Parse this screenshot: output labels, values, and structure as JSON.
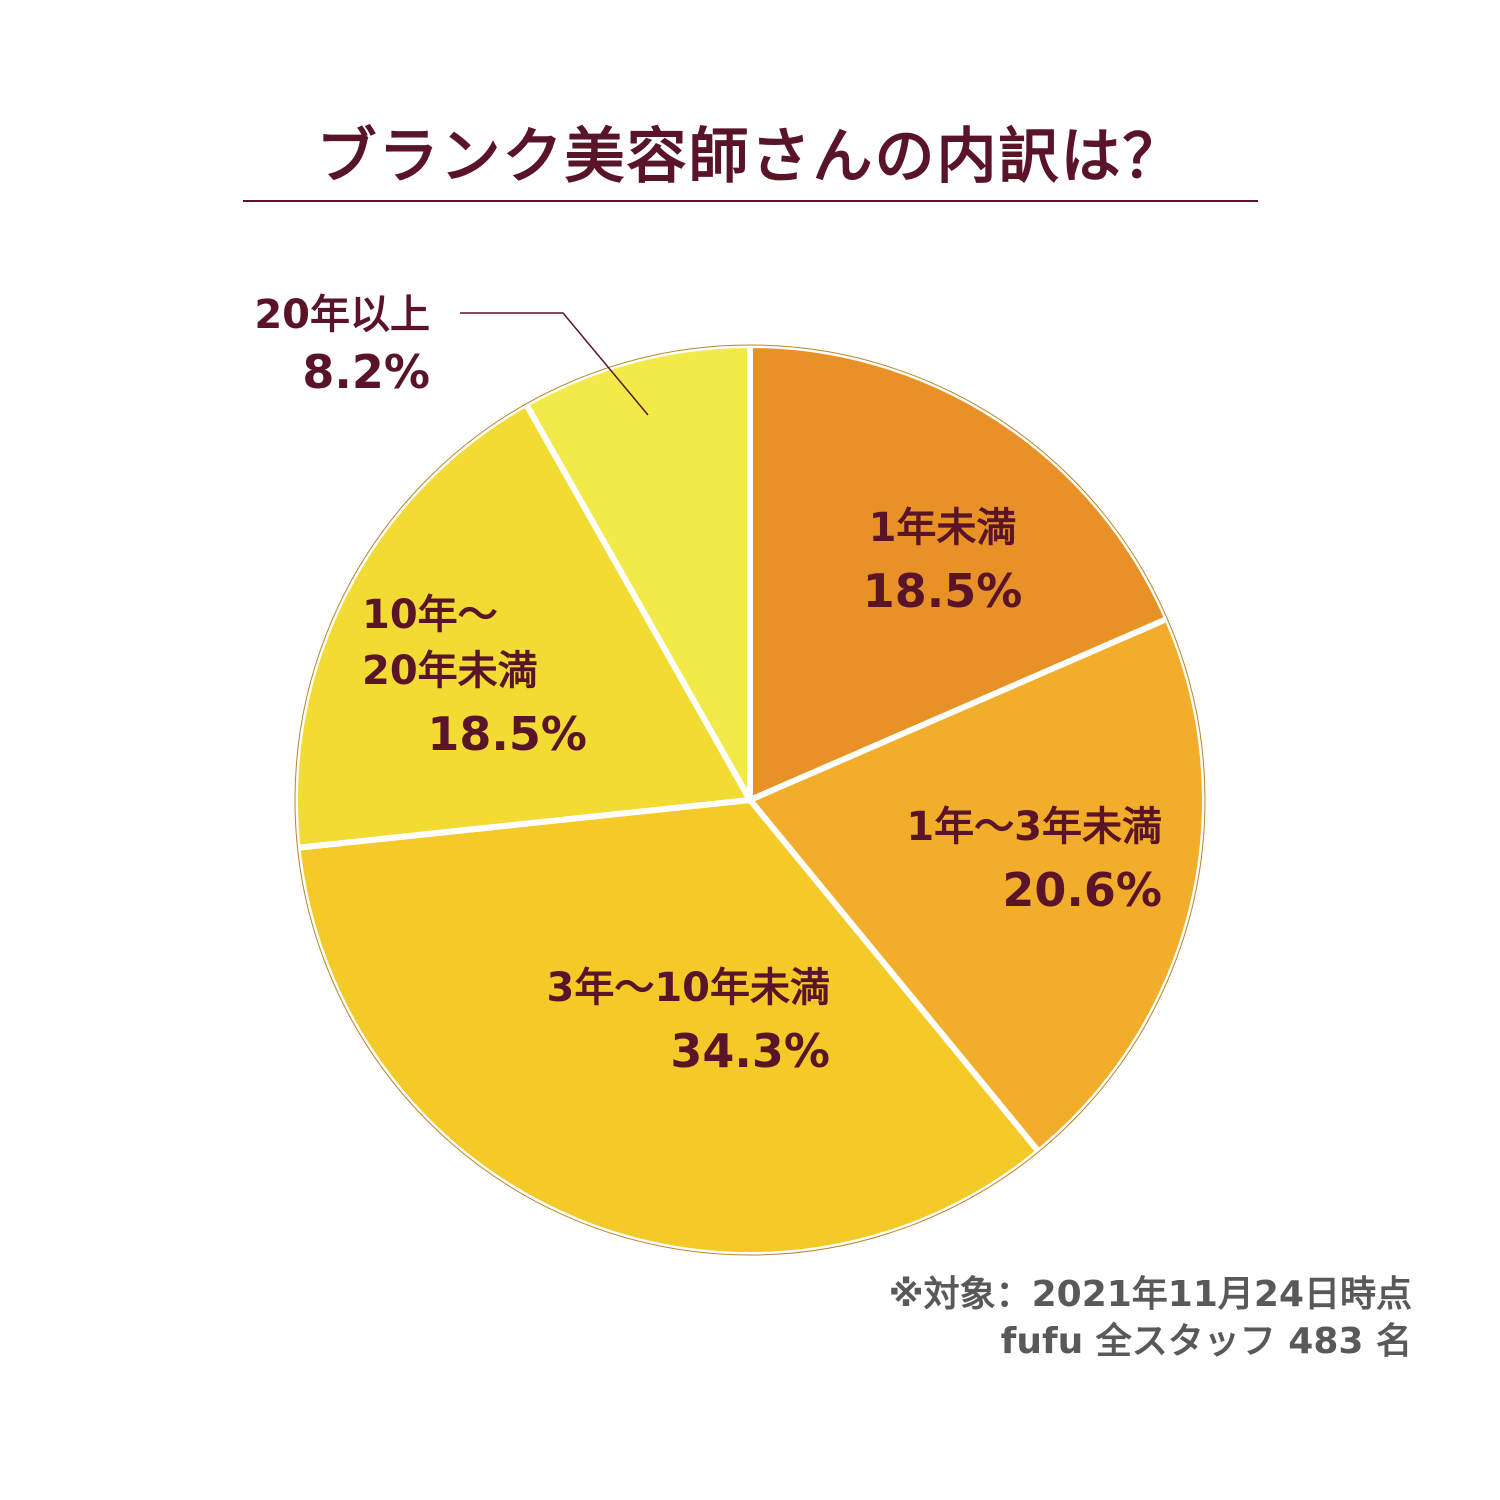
{
  "title": "ブランク美容師さんの内訳は？",
  "chart_data": {
    "type": "pie",
    "title": "ブランク美容師さんの内訳は？",
    "slices": [
      {
        "label": "1年未満",
        "value": 18.5,
        "value_label": "18.5%",
        "color": "#e89126"
      },
      {
        "label": "1年～3年未満",
        "value": 20.6,
        "value_label": "20.6%",
        "color": "#f2ad2a"
      },
      {
        "label": "3年～10年未満",
        "value": 34.3,
        "value_label": "34.3%",
        "color": "#f4ca28"
      },
      {
        "label": "10年～20年未満",
        "label_lines": [
          "10年～",
          "20年未満"
        ],
        "value": 18.5,
        "value_label": "18.5%",
        "color": "#f2dc33"
      },
      {
        "label": "20年以上",
        "value": 8.2,
        "value_label": "8.2%",
        "color": "#f2ea48"
      }
    ],
    "start_angle": "12 o'clock",
    "direction": "clockwise"
  },
  "footnote": {
    "line1": "※対象：2021年11月24日時点",
    "line2": "fufu 全スタッフ 483 名"
  }
}
